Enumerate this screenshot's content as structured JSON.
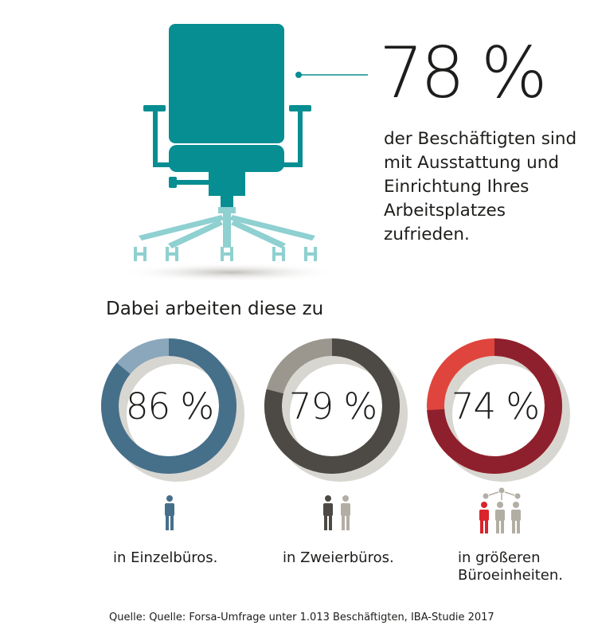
{
  "headline": {
    "value": "78 %",
    "text": "der Beschäftigten sind mit Ausstattung und Einrichtung Ihres Arbeitsplatzes zufrieden."
  },
  "subheading": "Dabei arbeiten diese zu",
  "colors": {
    "teal": "#078e92",
    "teal_light": "#8fd0d1",
    "blue_dark": "#466f8a",
    "blue_light": "#8aa7bc",
    "grey_dark": "#4d4a45",
    "grey_light": "#9b978e",
    "red_dark": "#8e202d",
    "red_light": "#e0453d",
    "shadow": "#d8d6d0"
  },
  "chart_data": {
    "type": "pie",
    "categories": [
      "in Einzelbüros.",
      "in Zweierbüros.",
      "in größeren Büroeinheiten."
    ],
    "values": [
      86,
      79,
      74
    ],
    "value_labels": [
      "86 %",
      "79 %",
      "74 %"
    ],
    "unit": "%"
  },
  "source": "Quelle: Quelle: Forsa-Umfrage unter 1.013 Beschäftigten, IBA-Studie 2017"
}
